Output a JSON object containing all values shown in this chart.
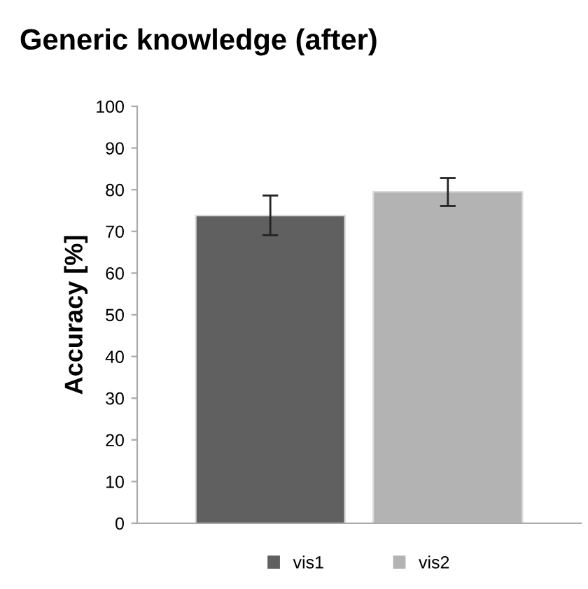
{
  "chart_data": {
    "type": "bar",
    "title": "Generic knowledge (after)",
    "ylabel": "Accuracy [%]",
    "categories": [
      null
    ],
    "series": [
      {
        "name": "vis1",
        "color": "#606060",
        "values": [
          73.8
        ],
        "errors": [
          [
            69.1,
            78.6
          ]
        ]
      },
      {
        "name": "vis2",
        "color": "#b3b3b3",
        "values": [
          79.5
        ],
        "errors": [
          [
            76.1,
            82.8
          ]
        ]
      }
    ],
    "ylim": [
      0,
      100
    ],
    "yticks": [
      0,
      10,
      20,
      30,
      40,
      50,
      60,
      70,
      80,
      90,
      100
    ],
    "grid": false,
    "legend": "bottom"
  }
}
